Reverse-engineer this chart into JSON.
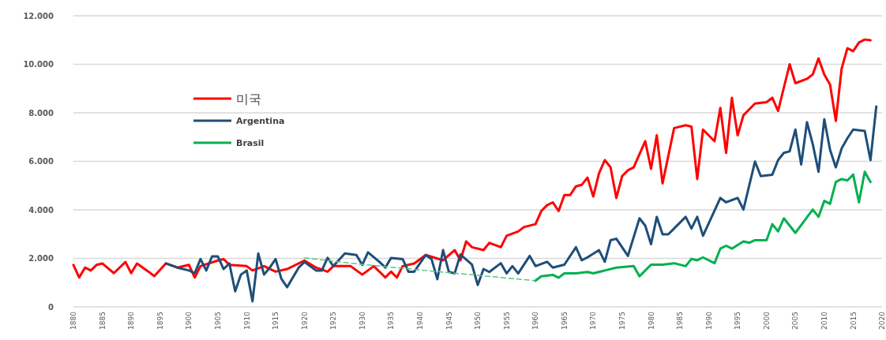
{
  "chart_data": {
    "type": "line",
    "xlim": [
      1880,
      2020
    ],
    "xticks": [
      1880,
      1885,
      1890,
      1895,
      1900,
      1905,
      1910,
      1915,
      1920,
      1925,
      1930,
      1935,
      1940,
      1945,
      1950,
      1955,
      1960,
      1965,
      1970,
      1975,
      1980,
      1985,
      1990,
      1995,
      2000,
      2005,
      2010,
      2015,
      2020
    ],
    "ylim": [
      0,
      12000
    ],
    "yticks": [
      0,
      {
        "value": 2000,
        "label": "2.000"
      },
      {
        "value": 4000,
        "label": "4.000"
      },
      {
        "value": 6000,
        "label": "6.000"
      },
      {
        "value": 8000,
        "label": "8.000"
      },
      {
        "value": 10000,
        "label": "10.000"
      },
      {
        "value": 12000,
        "label": "12.000"
      }
    ],
    "grid": "y",
    "legend": "top left",
    "line_style": "solid",
    "series": [
      {
        "name": "미국",
        "color": "#ff0000",
        "x": [
          1880,
          1881,
          1882,
          1883,
          1884,
          1885,
          1887,
          1889,
          1890,
          1891,
          1893,
          1894,
          1896,
          1898,
          1900,
          1901,
          1902,
          1905,
          1906,
          1907,
          1910,
          1911,
          1913,
          1915,
          1917,
          1920,
          1922,
          1924,
          1925,
          1928,
          1930,
          1932,
          1934,
          1935,
          1936,
          1937,
          1939,
          1941,
          1944,
          1946,
          1947,
          1948,
          1949,
          1951,
          1952,
          1954,
          1955,
          1957,
          1958,
          1960,
          1961,
          1962,
          1963,
          1964,
          1965,
          1966,
          1967,
          1968,
          1969,
          1970,
          1971,
          1972,
          1973,
          1974,
          1975,
          1976,
          1977,
          1979,
          1980,
          1981,
          1982,
          1984,
          1986,
          1987,
          1988,
          1989,
          1991,
          1992,
          1993,
          1994,
          1995,
          1996,
          1998,
          2000,
          2001,
          2002,
          2004,
          2005,
          2007,
          2008,
          2009,
          2010,
          2011,
          2012,
          2013,
          2014,
          2015,
          2016,
          2017,
          2018
        ],
        "values": [
          1730,
          1210,
          1620,
          1500,
          1730,
          1790,
          1390,
          1850,
          1390,
          1790,
          1450,
          1270,
          1790,
          1620,
          1730,
          1210,
          1680,
          1910,
          1970,
          1730,
          1680,
          1500,
          1680,
          1450,
          1560,
          1910,
          1620,
          1450,
          1680,
          1680,
          1330,
          1680,
          1210,
          1450,
          1210,
          1680,
          1790,
          2140,
          1920,
          2340,
          1920,
          2700,
          2460,
          2340,
          2640,
          2460,
          2930,
          3110,
          3290,
          3410,
          3950,
          4190,
          4310,
          3950,
          4610,
          4610,
          4970,
          5030,
          5330,
          4550,
          5510,
          6050,
          5750,
          4490,
          5390,
          5630,
          5750,
          6830,
          5690,
          7070,
          5090,
          7370,
          7490,
          7430,
          5270,
          7310,
          6830,
          8200,
          6350,
          8620,
          7070,
          7900,
          8380,
          8440,
          8620,
          8080,
          10000,
          9220,
          9400,
          9580,
          10240,
          9580,
          9160,
          7670,
          9820,
          10660,
          10540,
          10900,
          11020,
          10990
        ]
      },
      {
        "name": "Argentina",
        "color": "#1f4e79",
        "x": [
          1896,
          1898,
          1900,
          1901,
          1902,
          1903,
          1904,
          1905,
          1906,
          1907,
          1908,
          1909,
          1910,
          1911,
          1912,
          1913,
          1914,
          1915,
          1916,
          1917,
          1919,
          1920,
          1922,
          1923,
          1924,
          1925,
          1927,
          1929,
          1930,
          1931,
          1933,
          1934,
          1935,
          1937,
          1938,
          1939,
          1941,
          1942,
          1943,
          1944,
          1945,
          1946,
          1947,
          1949,
          1950,
          1951,
          1952,
          1954,
          1955,
          1956,
          1957,
          1959,
          1960,
          1962,
          1963,
          1965,
          1967,
          1968,
          1969,
          1971,
          1972,
          1973,
          1974,
          1976,
          1978,
          1979,
          1980,
          1981,
          1982,
          1983,
          1984,
          1986,
          1987,
          1988,
          1989,
          1992,
          1993,
          1995,
          1996,
          1998,
          1999,
          2001,
          2002,
          2003,
          2004,
          2005,
          2006,
          2007,
          2008,
          2009,
          2010,
          2011,
          2012,
          2013,
          2014,
          2015,
          2017,
          2018,
          2019
        ],
        "values": [
          1790,
          1620,
          1500,
          1390,
          1970,
          1500,
          2080,
          2080,
          1560,
          1790,
          640,
          1330,
          1500,
          230,
          2200,
          1330,
          1620,
          1970,
          1160,
          810,
          1620,
          1850,
          1500,
          1500,
          2020,
          1680,
          2200,
          2140,
          1730,
          2250,
          1850,
          1620,
          2020,
          1970,
          1450,
          1450,
          2140,
          1970,
          1140,
          2340,
          1440,
          1380,
          2160,
          1740,
          900,
          1560,
          1440,
          1800,
          1380,
          1680,
          1380,
          2100,
          1680,
          1860,
          1620,
          1740,
          2460,
          1920,
          2040,
          2340,
          1860,
          2750,
          2810,
          2100,
          3650,
          3350,
          2580,
          3710,
          2990,
          2990,
          3230,
          3710,
          3230,
          3710,
          2930,
          4490,
          4310,
          4490,
          4010,
          5990,
          5390,
          5450,
          6050,
          6350,
          6410,
          7310,
          5870,
          7610,
          6710,
          5570,
          7730,
          6470,
          5750,
          6530,
          6950,
          7310,
          7250,
          6050,
          8260
        ]
      },
      {
        "color": "#5cc58a",
        "line_style": "dashed",
        "x": [
          1920,
          1930,
          1941,
          1950,
          1960
        ],
        "values": [
          2020,
          1750,
          1500,
          1300,
          1080
        ]
      },
      {
        "name": "Brasil",
        "color": "#00b050",
        "x": [
          1960,
          1961,
          1963,
          1964,
          1965,
          1967,
          1969,
          1970,
          1972,
          1974,
          1977,
          1978,
          1979,
          1980,
          1982,
          1984,
          1986,
          1987,
          1988,
          1989,
          1991,
          1992,
          1993,
          1994,
          1996,
          1997,
          1998,
          2000,
          2001,
          2002,
          2003,
          2005,
          2008,
          2009,
          2010,
          2011,
          2012,
          2013,
          2014,
          2015,
          2016,
          2017,
          2018
        ],
        "values": [
          1080,
          1260,
          1320,
          1200,
          1380,
          1380,
          1440,
          1380,
          1500,
          1620,
          1680,
          1260,
          1500,
          1740,
          1740,
          1800,
          1680,
          1980,
          1920,
          2040,
          1800,
          2400,
          2520,
          2400,
          2700,
          2640,
          2750,
          2750,
          3410,
          3110,
          3650,
          3050,
          4010,
          3710,
          4370,
          4250,
          5150,
          5270,
          5210,
          5450,
          4310,
          5570,
          5150
        ]
      }
    ]
  }
}
